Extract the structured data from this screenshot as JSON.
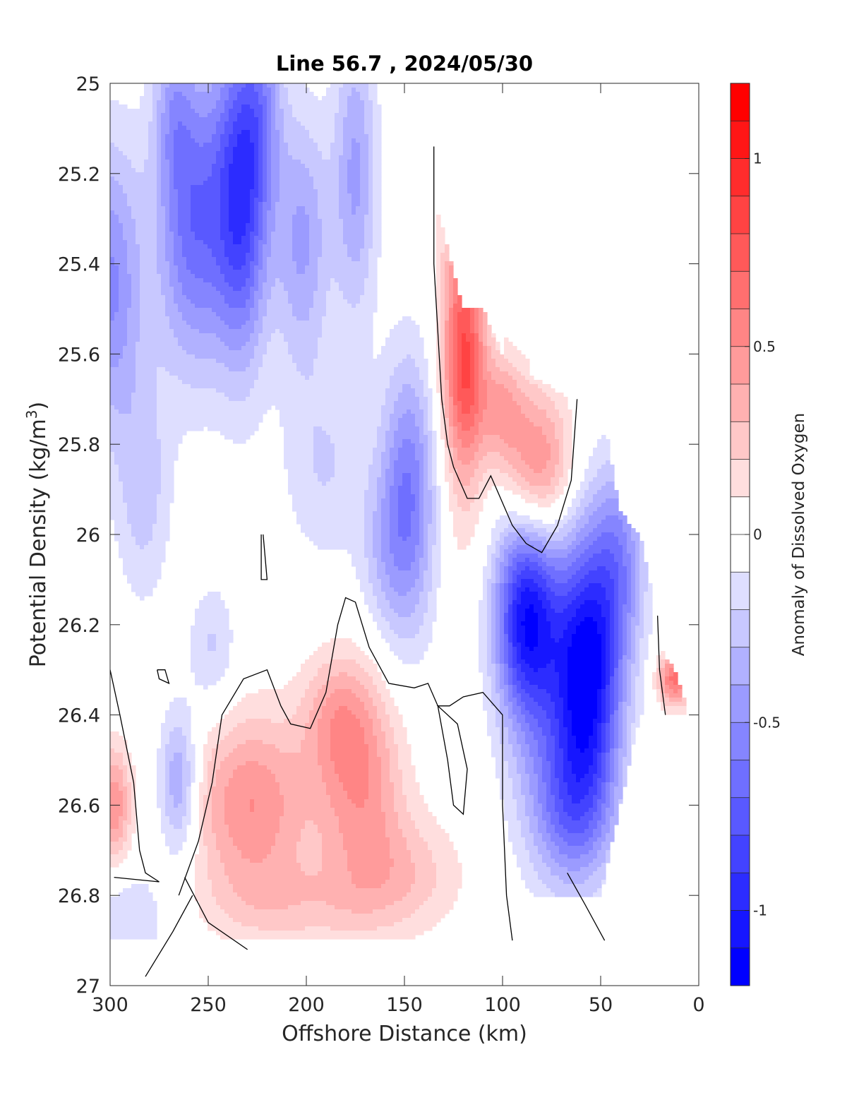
{
  "chart_data": {
    "type": "heatmap",
    "subtype": "filled-contour",
    "title": "Line 56.7 , 2024/05/30",
    "xlabel": "Offshore Distance (km)",
    "ylabel": "Potential Density (kg/m",
    "ylabel_superscript": "3",
    "ylabel_suffix": ")",
    "xlim": [
      300,
      0
    ],
    "x_reversed": true,
    "ylim": [
      25,
      27
    ],
    "y_reversed": true,
    "x_ticks": [
      300,
      250,
      200,
      150,
      100,
      50,
      0
    ],
    "x_tick_labels": [
      "300",
      "250",
      "200",
      "150",
      "100",
      "50",
      "0"
    ],
    "y_ticks": [
      25,
      25.2,
      25.4,
      25.6,
      25.8,
      26,
      26.2,
      26.4,
      26.6,
      26.8,
      27
    ],
    "y_tick_labels": [
      "25",
      "25.2",
      "25.4",
      "25.6",
      "25.8",
      "26",
      "26.2",
      "26.4",
      "26.6",
      "26.8",
      "27"
    ],
    "colorbar": {
      "label": "Anomaly of Dissolved Oxygen",
      "clim": [
        -1.2,
        1.2
      ],
      "levels": 24,
      "ticks": [
        -1,
        -0.5,
        0,
        0.5,
        1
      ],
      "tick_labels": [
        "-1",
        "-0.5",
        "0",
        "0.5",
        "1"
      ],
      "colormap": "blue-white-red",
      "low_color": "#0000ff",
      "mid_color": "#ffffff",
      "high_color": "#ff0000"
    },
    "grid": false,
    "zero_contour_color": "#000000",
    "approx_regions": [
      {
        "name": "offshore upper low",
        "x": [
          300,
          155
        ],
        "y": [
          25,
          26.2
        ],
        "value_range": [
          -1.0,
          -0.2
        ],
        "min_at": {
          "x": 230,
          "y": 25.3,
          "value": -1.0
        }
      },
      {
        "name": "nearshore upper high",
        "x": [
          135,
          60
        ],
        "y": [
          25.2,
          26.05
        ],
        "value_range": [
          0.1,
          0.6
        ],
        "max_at": {
          "x": 118,
          "y": 25.65,
          "value": 0.6
        }
      },
      {
        "name": "nearshore deep low",
        "x": [
          110,
          20
        ],
        "y": [
          25.7,
          26.8
        ],
        "value_range": [
          -1.0,
          -0.2
        ],
        "min_at": {
          "x": 55,
          "y": 26.3,
          "value": -1.0
        }
      },
      {
        "name": "mid deep high",
        "x": [
          250,
          110
        ],
        "y": [
          26.2,
          26.9
        ],
        "value_range": [
          0.1,
          0.5
        ],
        "max_at": {
          "x": 228,
          "y": 26.6,
          "value": 0.5
        }
      },
      {
        "name": "offshore deep high",
        "x": [
          300,
          280
        ],
        "y": [
          26.35,
          26.75
        ],
        "value_range": [
          0.1,
          0.45
        ],
        "max_at": {
          "x": 297,
          "y": 26.6,
          "value": 0.45
        }
      },
      {
        "name": "coastal deep high",
        "x": [
          20,
          5
        ],
        "y": [
          26.25,
          26.4
        ],
        "value_range": [
          0.1,
          0.6
        ]
      }
    ],
    "data_extent": {
      "x_range": [
        300,
        5
      ],
      "y_range": [
        25,
        26.9
      ],
      "upper_edge": [
        [
          300,
          25
        ],
        [
          140,
          25
        ],
        [
          135,
          25.25
        ],
        [
          120,
          25.5
        ],
        [
          110,
          25.5
        ],
        [
          100,
          25.6
        ],
        [
          95,
          25.5
        ],
        [
          85,
          25.65
        ],
        [
          65,
          25.7
        ],
        [
          50,
          25.7
        ],
        [
          40,
          25.95
        ],
        [
          30,
          26
        ],
        [
          25,
          26.1
        ],
        [
          20,
          26.25
        ],
        [
          12,
          26.3
        ],
        [
          5,
          26.4
        ]
      ],
      "lower_edge": [
        [
          300,
          26.9
        ],
        [
          110,
          26.9
        ],
        [
          100,
          26.8
        ],
        [
          50,
          26.8
        ],
        [
          30,
          26.4
        ],
        [
          5,
          26.4
        ]
      ]
    }
  }
}
